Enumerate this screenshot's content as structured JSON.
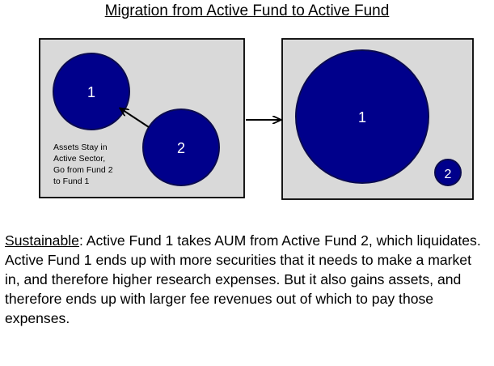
{
  "title": "Migration from Active Fund to Active Fund",
  "before_panel": {
    "fund_1_label": "1",
    "fund_2_label": "2",
    "note_lines": [
      "Assets Stay in",
      "Active Sector,",
      "Go from Fund 2",
      "to Fund 1"
    ]
  },
  "after_panel": {
    "fund_1_label": "1",
    "fund_2_label": "2"
  },
  "colors": {
    "panel_fill": "#d9d9d9",
    "panel_border": "#000000",
    "circle_fill": "#00008b",
    "circle_stroke": "#0a0a50",
    "arrow": "#000000"
  },
  "description": {
    "label": "Sustainable",
    "text": ":  Active Fund 1 takes AUM from Active Fund 2, which liquidates.  Active Fund 1 ends up with more securities that it needs to make a market in, and therefore higher research expenses.  But it also gains assets, and therefore ends up with larger fee revenues out of which to pay those expenses."
  }
}
